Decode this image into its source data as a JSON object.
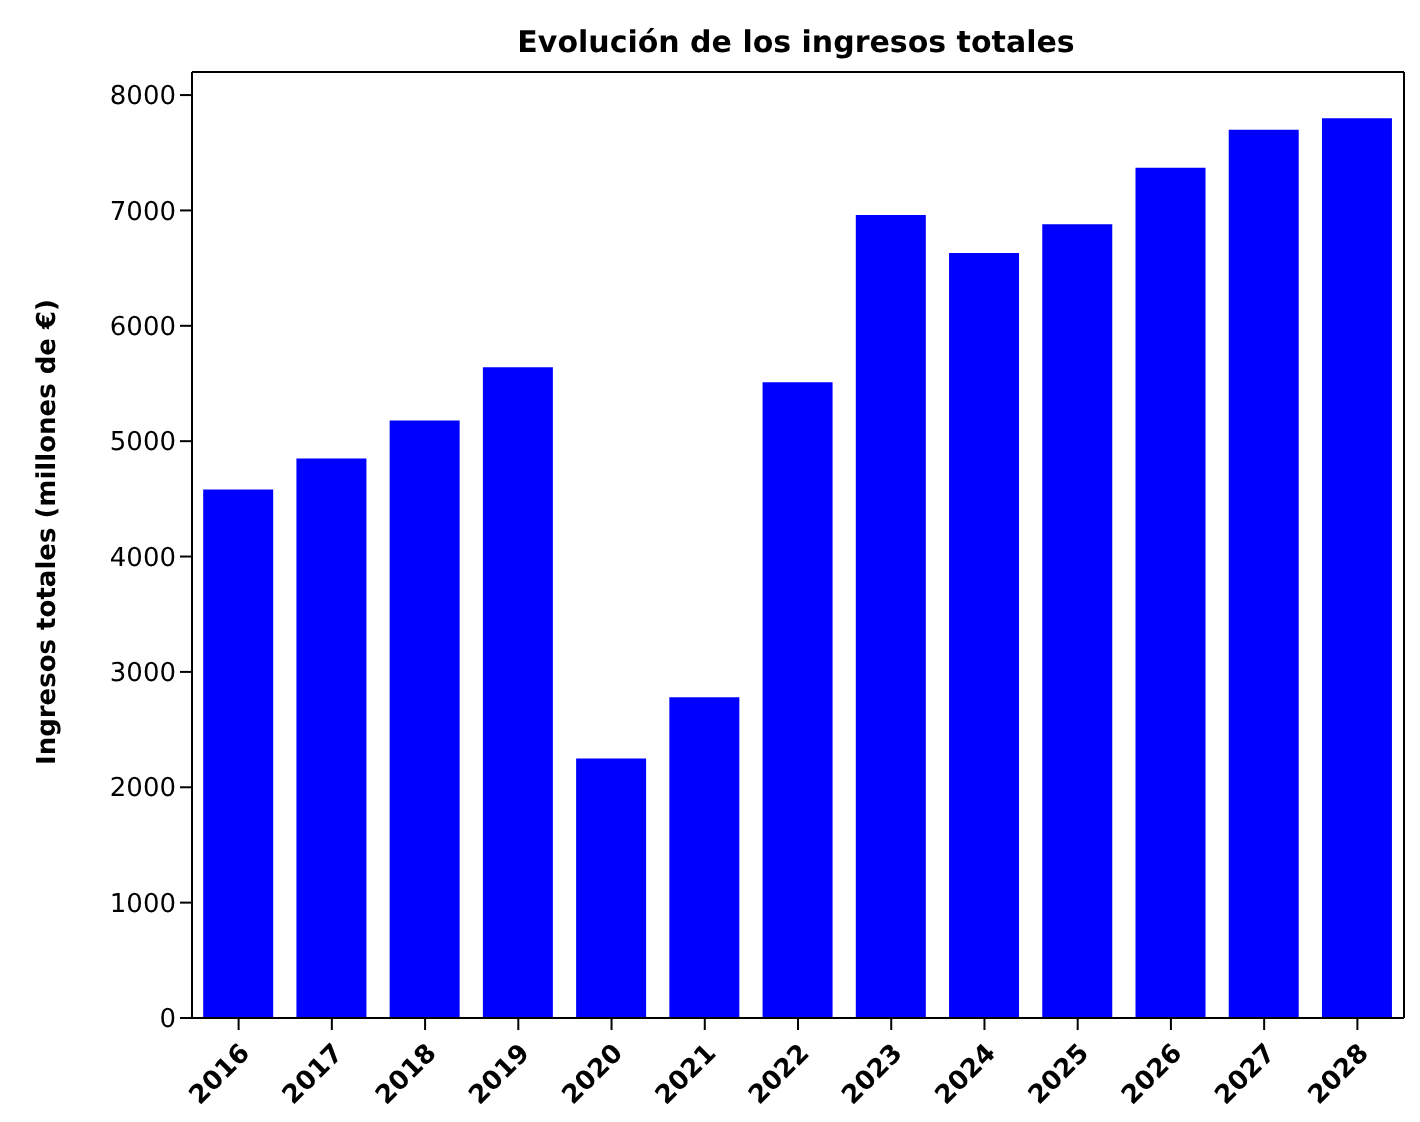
{
  "chart_data": {
    "type": "bar",
    "title": "Evolución de los ingresos totales",
    "ylabel": "Ingresos totales (millones de €)",
    "categories": [
      "2016",
      "2017",
      "2018",
      "2019",
      "2020",
      "2021",
      "2022",
      "2023",
      "2024",
      "2025",
      "2026",
      "2027",
      "2028"
    ],
    "values": [
      4580,
      4850,
      5180,
      5640,
      2250,
      2780,
      5510,
      6960,
      6630,
      6880,
      7370,
      7700,
      7800
    ],
    "color": "#0000ff",
    "ylim": [
      0,
      8200
    ],
    "yticks": [
      0,
      1000,
      2000,
      3000,
      4000,
      5000,
      6000,
      7000,
      8000
    ]
  }
}
